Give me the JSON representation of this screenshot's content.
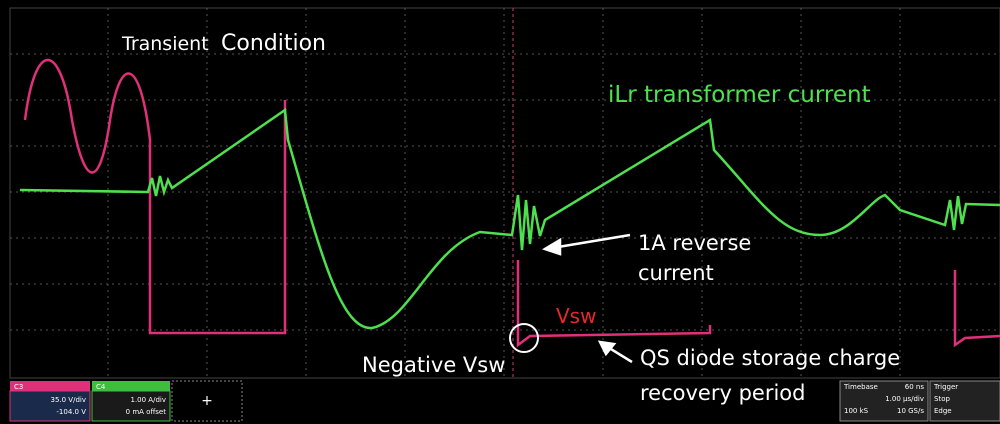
{
  "scope": {
    "title_prefix": "Transient",
    "title_main": "Condition",
    "annotations": {
      "current_label": "iLr transformer current",
      "reverse_line1": "1A reverse",
      "reverse_line2": "current",
      "vsw": "Vsw",
      "negative_vsw": "Negative Vsw",
      "qs_line1": "QS diode storage charge",
      "qs_line2": "recovery period"
    }
  },
  "status_bar": {
    "c3": {
      "name": "C3",
      "scale": "35.0 V/div",
      "offset": "-104.0 V"
    },
    "c4": {
      "name": "C4",
      "scale": "1.00 A/div",
      "offset": "0 mA offset"
    },
    "add": "+",
    "timebase": {
      "label": "Timebase",
      "delay": "60 ns",
      "scale": "1.00 µs/div",
      "samples": "100 kS",
      "rate": "10 GS/s"
    },
    "trigger": {
      "label": "Trigger",
      "mode": "Stop",
      "type": "Edge"
    }
  }
}
